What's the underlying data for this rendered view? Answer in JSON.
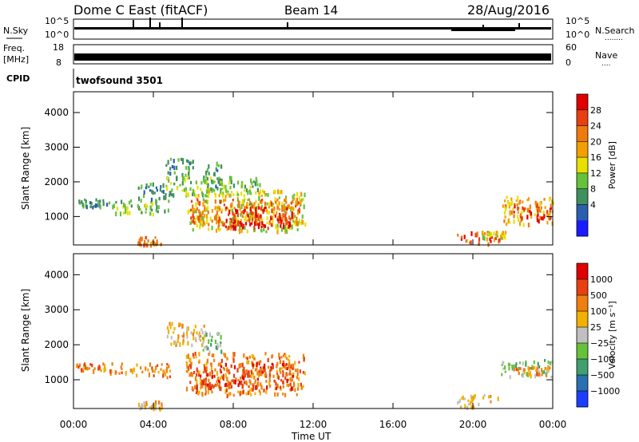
{
  "header": {
    "radar": "Dome C East (fitACF)",
    "beam": "Beam 14",
    "date": "28/Aug/2016"
  },
  "nsky_panel": {
    "left_label": "N.Sky",
    "ticks_left": [
      "10^5",
      "10^0"
    ],
    "ticks_right": [
      "10^5",
      "10^0"
    ],
    "right_label": "N.Search",
    "right_dots": "........"
  },
  "freq_panel": {
    "left_label_1": "Freq.",
    "left_label_2": "[MHz]",
    "ticks_left": [
      "18",
      "8"
    ],
    "ticks_right": [
      "60",
      "0"
    ],
    "right_label": "Nave",
    "right_dots": "...."
  },
  "cpid": {
    "label": "CPID",
    "program": "twofsound 3501"
  },
  "time_axis": {
    "label": "Time UT",
    "ticks": [
      "00:00",
      "04:00",
      "08:00",
      "12:00",
      "16:00",
      "20:00",
      "00:00"
    ],
    "hours": [
      0,
      4,
      8,
      12,
      16,
      20,
      24
    ]
  },
  "chart_data": [
    {
      "type": "heatmap",
      "name": "power",
      "ylabel": "Slant Range [km]",
      "yticks": [
        1000,
        2000,
        3000,
        4000
      ],
      "ylim": [
        180,
        4600
      ],
      "xlim": [
        0,
        24
      ],
      "colorbar": {
        "label": "Power [dB]",
        "ticks": [
          "4",
          "8",
          "12",
          "16",
          "20",
          "24",
          "28"
        ],
        "colors": [
          "#1a1aff",
          "#2a5fb0",
          "#3f8f5f",
          "#66c23a",
          "#e8e000",
          "#f2a000",
          "#ef7a10",
          "#e84010",
          "#e00000"
        ]
      },
      "regions": [
        {
          "t0": 0.1,
          "t1": 1.8,
          "r0": 1300,
          "r1": 1550,
          "c": 2
        },
        {
          "t0": 1.8,
          "t1": 4.8,
          "r0": 1100,
          "r1": 1500,
          "c": 3
        },
        {
          "t0": 3.2,
          "t1": 4.6,
          "r0": 1500,
          "r1": 2000,
          "c": 2
        },
        {
          "t0": 4.6,
          "t1": 6.0,
          "r0": 2200,
          "r1": 2700,
          "c": 2
        },
        {
          "t0": 6.4,
          "t1": 7.4,
          "r0": 1800,
          "r1": 2600,
          "c": 2
        },
        {
          "t0": 4.6,
          "t1": 9.4,
          "r0": 1600,
          "r1": 2200,
          "c": 3
        },
        {
          "t0": 5.6,
          "t1": 11.6,
          "r0": 600,
          "r1": 1800,
          "c": 4
        },
        {
          "t0": 5.8,
          "t1": 11.4,
          "r0": 800,
          "r1": 1550,
          "c": 6
        },
        {
          "t0": 7.4,
          "t1": 11.0,
          "r0": 700,
          "r1": 1300,
          "c": 8
        },
        {
          "t0": 3.2,
          "t1": 4.4,
          "r0": 200,
          "r1": 450,
          "c": 6
        },
        {
          "t0": 19.2,
          "t1": 21.4,
          "r0": 250,
          "r1": 600,
          "c": 7
        },
        {
          "t0": 20.4,
          "t1": 21.6,
          "r0": 400,
          "r1": 600,
          "c": 4
        },
        {
          "t0": 21.4,
          "t1": 24.0,
          "r0": 800,
          "r1": 1600,
          "c": 5
        },
        {
          "t0": 22.0,
          "t1": 24.0,
          "r0": 900,
          "r1": 1400,
          "c": 7
        }
      ]
    },
    {
      "type": "heatmap",
      "name": "velocity",
      "ylabel": "Slant Range [km]",
      "yticks": [
        1000,
        2000,
        3000,
        4000
      ],
      "ylim": [
        180,
        4600
      ],
      "xlim": [
        0,
        24
      ],
      "colorbar": {
        "label": "Velocity [m s⁻¹]",
        "ticks": [
          "1000",
          "500",
          "100",
          "25",
          "−25",
          "−100",
          "−500",
          "−1000"
        ],
        "colors": [
          "#1a3fff",
          "#2a6fb0",
          "#3f9f6f",
          "#66c23a",
          "#c0c0c0",
          "#f2b000",
          "#ef8010",
          "#e84010",
          "#e00000"
        ]
      },
      "regions": [
        {
          "t0": 0.1,
          "t1": 1.8,
          "r0": 1300,
          "r1": 1500,
          "c": 6
        },
        {
          "t0": 1.8,
          "t1": 4.8,
          "r0": 1100,
          "r1": 1500,
          "c": 6
        },
        {
          "t0": 4.6,
          "t1": 6.6,
          "r0": 2000,
          "r1": 2700,
          "c": 5
        },
        {
          "t0": 6.4,
          "t1": 7.4,
          "r0": 1800,
          "r1": 2400,
          "c": 3
        },
        {
          "t0": 5.6,
          "t1": 11.6,
          "r0": 600,
          "r1": 1800,
          "c": 6
        },
        {
          "t0": 6.0,
          "t1": 11.0,
          "r0": 800,
          "r1": 1500,
          "c": 7
        },
        {
          "t0": 3.2,
          "t1": 4.4,
          "r0": 200,
          "r1": 450,
          "c": 5
        },
        {
          "t0": 19.2,
          "t1": 21.4,
          "r0": 250,
          "r1": 600,
          "c": 5
        },
        {
          "t0": 21.4,
          "t1": 24.0,
          "r0": 1100,
          "r1": 1600,
          "c": 3
        },
        {
          "t0": 22.0,
          "t1": 24.0,
          "r0": 1150,
          "r1": 1400,
          "c": 6
        }
      ]
    }
  ]
}
